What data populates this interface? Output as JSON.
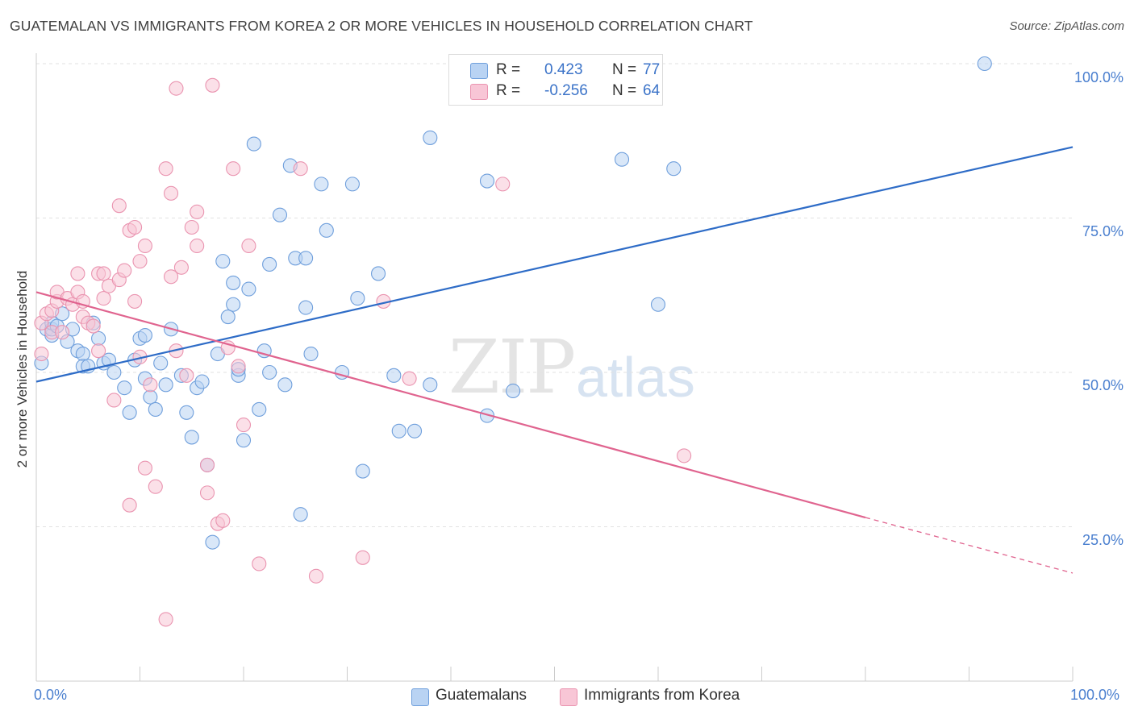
{
  "header": {
    "title": "GUATEMALAN VS IMMIGRANTS FROM KOREA 2 OR MORE VEHICLES IN HOUSEHOLD CORRELATION CHART",
    "source": "Source: ZipAtlas.com"
  },
  "legend": {
    "row1": {
      "r_label": "R =",
      "r_value": "0.423",
      "n_label": "N =",
      "n_value": "77"
    },
    "row2": {
      "r_label": "R =",
      "r_value": "-0.256",
      "n_label": "N =",
      "n_value": "64"
    }
  },
  "watermark": {
    "zip": "ZIP",
    "atlas": "atlas"
  },
  "colors": {
    "blue_fill": "#b9d3f3",
    "blue_stroke": "#6f9fdc",
    "blue_line": "#2e6cc7",
    "pink_fill": "#f8c6d6",
    "pink_stroke": "#ea94b0",
    "pink_line": "#e0648f"
  },
  "chart_data": {
    "type": "scatter",
    "title": "GUATEMALAN VS IMMIGRANTS FROM KOREA 2 OR MORE VEHICLES IN HOUSEHOLD CORRELATION CHART",
    "xlabel": "",
    "ylabel": "2 or more Vehicles in Household",
    "xlim": [
      0,
      100
    ],
    "ylim": [
      0,
      105
    ],
    "x_tick_labels": [
      "0.0%",
      "100.0%"
    ],
    "y_tick_labels": [
      "25.0%",
      "50.0%",
      "75.0%",
      "100.0%"
    ],
    "y_ticks": [
      25,
      50,
      75,
      100
    ],
    "grid": true,
    "legend_position": "top-center",
    "series": [
      {
        "name": "Guatemalans",
        "color": "#6f9fdc",
        "r": 0.423,
        "n": 77,
        "trend": {
          "x": [
            0,
            100
          ],
          "y": [
            48.5,
            86.5
          ]
        },
        "points": [
          [
            0.5,
            51.5
          ],
          [
            1.0,
            57.0
          ],
          [
            1.5,
            56.0
          ],
          [
            1.5,
            57.0
          ],
          [
            1.5,
            58.0
          ],
          [
            2.0,
            57.5
          ],
          [
            2.5,
            59.5
          ],
          [
            3.0,
            55.0
          ],
          [
            3.5,
            57.0
          ],
          [
            4.0,
            53.5
          ],
          [
            4.5,
            53.0
          ],
          [
            4.5,
            51.0
          ],
          [
            5.0,
            51.0
          ],
          [
            5.5,
            58.0
          ],
          [
            6.0,
            55.5
          ],
          [
            6.5,
            51.5
          ],
          [
            7.0,
            52.0
          ],
          [
            7.5,
            50.0
          ],
          [
            8.5,
            47.5
          ],
          [
            9.0,
            43.5
          ],
          [
            9.5,
            52.0
          ],
          [
            10.0,
            55.5
          ],
          [
            10.5,
            49.0
          ],
          [
            10.5,
            56.0
          ],
          [
            11.0,
            46.0
          ],
          [
            11.5,
            44.0
          ],
          [
            12.0,
            51.5
          ],
          [
            12.5,
            48.0
          ],
          [
            13.0,
            57.0
          ],
          [
            14.0,
            49.5
          ],
          [
            14.5,
            43.5
          ],
          [
            15.0,
            39.5
          ],
          [
            15.5,
            47.5
          ],
          [
            16.0,
            48.5
          ],
          [
            16.5,
            35.0
          ],
          [
            17.0,
            22.5
          ],
          [
            17.5,
            53.0
          ],
          [
            18.0,
            68.0
          ],
          [
            18.5,
            59.0
          ],
          [
            19.0,
            64.5
          ],
          [
            19.0,
            61.0
          ],
          [
            19.5,
            49.5
          ],
          [
            19.5,
            50.5
          ],
          [
            20.0,
            39.0
          ],
          [
            20.5,
            63.5
          ],
          [
            21.0,
            87.0
          ],
          [
            21.5,
            44.0
          ],
          [
            22.0,
            53.5
          ],
          [
            22.5,
            67.5
          ],
          [
            22.5,
            50.0
          ],
          [
            23.5,
            75.5
          ],
          [
            24.0,
            48.0
          ],
          [
            24.5,
            83.5
          ],
          [
            25.0,
            68.5
          ],
          [
            25.5,
            27.0
          ],
          [
            26.0,
            68.5
          ],
          [
            26.0,
            60.5
          ],
          [
            26.5,
            53.0
          ],
          [
            27.5,
            80.5
          ],
          [
            28.0,
            73.0
          ],
          [
            29.5,
            50.0
          ],
          [
            30.5,
            80.5
          ],
          [
            31.0,
            62.0
          ],
          [
            31.5,
            34.0
          ],
          [
            33.0,
            66.0
          ],
          [
            34.5,
            49.5
          ],
          [
            35.0,
            40.5
          ],
          [
            36.5,
            40.5
          ],
          [
            38.0,
            88.0
          ],
          [
            38.0,
            48.0
          ],
          [
            43.5,
            43.0
          ],
          [
            43.5,
            81.0
          ],
          [
            46.0,
            47.0
          ],
          [
            56.5,
            84.5
          ],
          [
            60.0,
            61.0
          ],
          [
            61.5,
            83.0
          ],
          [
            91.5,
            100.0
          ]
        ]
      },
      {
        "name": "Immigrants from Korea",
        "color": "#ea94b0",
        "r": -0.256,
        "n": 64,
        "trend": {
          "x": [
            0,
            80
          ],
          "y": [
            63.0,
            26.5
          ]
        },
        "trend_dashed": {
          "x": [
            80,
            100
          ],
          "y": [
            26.5,
            17.5
          ]
        },
        "points": [
          [
            0.5,
            58.0
          ],
          [
            0.5,
            53.0
          ],
          [
            1.0,
            59.5
          ],
          [
            1.5,
            56.5
          ],
          [
            1.5,
            60.0
          ],
          [
            2.0,
            61.5
          ],
          [
            2.0,
            63.0
          ],
          [
            2.5,
            56.5
          ],
          [
            3.0,
            62.0
          ],
          [
            3.5,
            61.0
          ],
          [
            4.0,
            63.0
          ],
          [
            4.0,
            66.0
          ],
          [
            4.5,
            61.5
          ],
          [
            4.5,
            59.0
          ],
          [
            5.0,
            58.0
          ],
          [
            5.5,
            57.5
          ],
          [
            6.0,
            53.5
          ],
          [
            6.0,
            66.0
          ],
          [
            6.5,
            62.0
          ],
          [
            6.5,
            66.0
          ],
          [
            7.0,
            64.0
          ],
          [
            7.5,
            45.5
          ],
          [
            8.0,
            65.0
          ],
          [
            8.0,
            77.0
          ],
          [
            8.5,
            66.5
          ],
          [
            9.0,
            73.0
          ],
          [
            9.0,
            28.5
          ],
          [
            9.5,
            73.5
          ],
          [
            9.5,
            61.5
          ],
          [
            10.0,
            52.5
          ],
          [
            10.0,
            68.0
          ],
          [
            10.5,
            70.5
          ],
          [
            10.5,
            34.5
          ],
          [
            11.0,
            48.0
          ],
          [
            11.5,
            31.5
          ],
          [
            12.5,
            83.0
          ],
          [
            12.5,
            10.0
          ],
          [
            13.0,
            65.5
          ],
          [
            13.0,
            79.0
          ],
          [
            13.5,
            53.5
          ],
          [
            13.5,
            96.0
          ],
          [
            14.0,
            67.0
          ],
          [
            14.5,
            49.5
          ],
          [
            15.0,
            73.5
          ],
          [
            15.5,
            76.0
          ],
          [
            15.5,
            70.5
          ],
          [
            16.5,
            35.0
          ],
          [
            16.5,
            30.5
          ],
          [
            17.0,
            96.5
          ],
          [
            17.5,
            25.5
          ],
          [
            18.0,
            26.0
          ],
          [
            18.5,
            54.0
          ],
          [
            19.0,
            83.0
          ],
          [
            19.5,
            51.0
          ],
          [
            20.0,
            41.5
          ],
          [
            20.5,
            70.5
          ],
          [
            21.5,
            19.0
          ],
          [
            25.5,
            83.0
          ],
          [
            27.0,
            17.0
          ],
          [
            31.5,
            20.0
          ],
          [
            33.5,
            61.5
          ],
          [
            36.0,
            49.0
          ],
          [
            45.0,
            80.5
          ],
          [
            62.5,
            36.5
          ]
        ]
      }
    ]
  }
}
